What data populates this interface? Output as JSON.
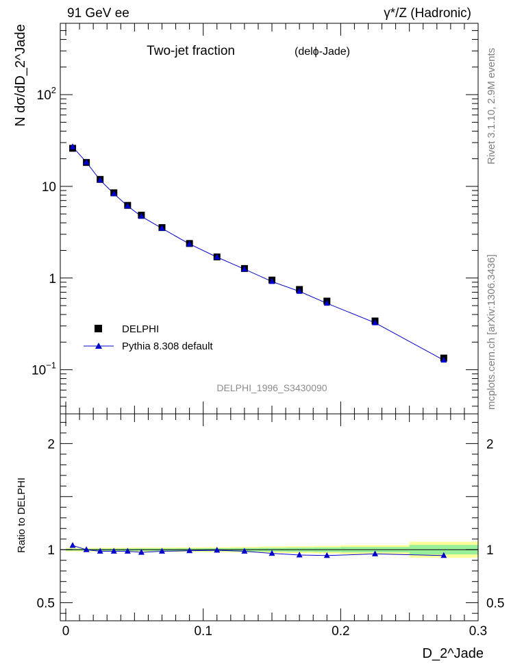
{
  "header": {
    "left": "91 GeV ee",
    "right": "γ*/Z (Hadronic)"
  },
  "side_labels": {
    "rivet": "Rivet 3.1.10, 2.9M events",
    "mcplots": "mcplots.cern.ch [arXiv:1306.3436]"
  },
  "chart_data": [
    {
      "type": "scatter",
      "title": "Two-jet fraction",
      "subtitle": "(delϕ-Jade)",
      "watermark": "DELPHI_1996_S3430090",
      "ylabel": "N dσ/dD_2^Jade",
      "yscale": "log",
      "ylim": [
        0.033,
        600
      ],
      "xlim": [
        -0.004,
        0.3
      ],
      "legend_position": "bottom-left",
      "y_ticks": [
        {
          "value": 0.1,
          "label": "10^-1"
        },
        {
          "value": 1,
          "label": "1"
        },
        {
          "value": 10,
          "label": "10"
        },
        {
          "value": 100,
          "label": "10^2"
        }
      ],
      "x": [
        0.005,
        0.015,
        0.025,
        0.035,
        0.045,
        0.055,
        0.07,
        0.09,
        0.11,
        0.13,
        0.15,
        0.17,
        0.19,
        0.225,
        0.275
      ],
      "series": [
        {
          "name": "DELPHI",
          "marker": "square",
          "color": "#000000",
          "values": [
            26.0,
            18.2,
            11.9,
            8.5,
            6.2,
            4.85,
            3.55,
            2.38,
            1.7,
            1.27,
            0.95,
            0.75,
            0.56,
            0.34,
            0.134
          ]
        },
        {
          "name": "Pythia 8.308 default",
          "marker": "triangle",
          "color": "#0000cc",
          "values": [
            27.0,
            18.3,
            11.7,
            8.3,
            6.1,
            4.7,
            3.48,
            2.35,
            1.69,
            1.25,
            0.915,
            0.715,
            0.53,
            0.325,
            0.127
          ]
        }
      ]
    },
    {
      "type": "line",
      "ylabel": "Ratio to DELPHI",
      "xlabel": "D_2^Jade",
      "ylim": [
        0.33,
        2.28
      ],
      "xlim": [
        -0.004,
        0.3
      ],
      "y_ticks": [
        {
          "value": 0.5,
          "label": "0.5"
        },
        {
          "value": 1,
          "label": "1"
        },
        {
          "value": 2,
          "label": "2"
        }
      ],
      "x_ticks": [
        {
          "value": 0,
          "label": "0"
        },
        {
          "value": 0.1,
          "label": "0.1"
        },
        {
          "value": 0.2,
          "label": "0.2"
        },
        {
          "value": 0.3,
          "label": "0.3"
        }
      ],
      "bins": [
        {
          "lo": 0.0,
          "hi": 0.01,
          "yellow": 0.017,
          "green": 0.009
        },
        {
          "lo": 0.01,
          "hi": 0.02,
          "yellow": 0.017,
          "green": 0.009
        },
        {
          "lo": 0.02,
          "hi": 0.03,
          "yellow": 0.018,
          "green": 0.01
        },
        {
          "lo": 0.03,
          "hi": 0.04,
          "yellow": 0.018,
          "green": 0.01
        },
        {
          "lo": 0.04,
          "hi": 0.05,
          "yellow": 0.019,
          "green": 0.011
        },
        {
          "lo": 0.05,
          "hi": 0.06,
          "yellow": 0.02,
          "green": 0.012
        },
        {
          "lo": 0.06,
          "hi": 0.08,
          "yellow": 0.021,
          "green": 0.012
        },
        {
          "lo": 0.08,
          "hi": 0.1,
          "yellow": 0.022,
          "green": 0.013
        },
        {
          "lo": 0.1,
          "hi": 0.12,
          "yellow": 0.024,
          "green": 0.014
        },
        {
          "lo": 0.12,
          "hi": 0.14,
          "yellow": 0.026,
          "green": 0.016
        },
        {
          "lo": 0.14,
          "hi": 0.16,
          "yellow": 0.03,
          "green": 0.018
        },
        {
          "lo": 0.16,
          "hi": 0.18,
          "yellow": 0.033,
          "green": 0.02
        },
        {
          "lo": 0.18,
          "hi": 0.2,
          "yellow": 0.036,
          "green": 0.022
        },
        {
          "lo": 0.2,
          "hi": 0.25,
          "yellow": 0.043,
          "green": 0.026
        },
        {
          "lo": 0.25,
          "hi": 0.3,
          "yellow": 0.075,
          "green": 0.045
        }
      ],
      "x": [
        0.005,
        0.015,
        0.025,
        0.035,
        0.045,
        0.055,
        0.07,
        0.09,
        0.11,
        0.13,
        0.15,
        0.17,
        0.19,
        0.225,
        0.275
      ],
      "series": [
        {
          "name": "Pythia 8.308 default",
          "color": "#0000cc",
          "values": [
            1.04,
            1.0,
            0.985,
            0.985,
            0.985,
            0.975,
            0.985,
            0.99,
            0.995,
            0.985,
            0.965,
            0.95,
            0.945,
            0.96,
            0.945
          ]
        }
      ]
    }
  ]
}
